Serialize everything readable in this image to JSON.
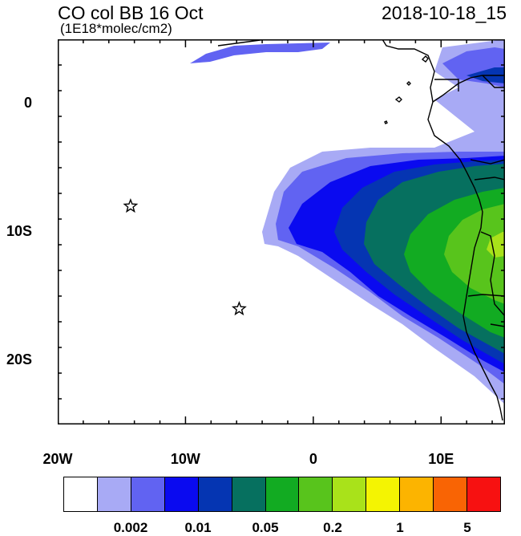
{
  "header": {
    "title": "CO col BB 16 Oct",
    "subtitle": "(1E18*molec/cm2)",
    "timestamp": "2018-10-18_15"
  },
  "map": {
    "lon_range": [
      -20,
      15
    ],
    "lat_range": [
      -25,
      5
    ],
    "x_tick_labels": [
      {
        "lon": -20,
        "label": "20W"
      },
      {
        "lon": -10,
        "label": "10W"
      },
      {
        "lon": 0,
        "label": "0"
      },
      {
        "lon": 10,
        "label": "10E"
      }
    ],
    "y_tick_labels": [
      {
        "lat": 0,
        "label": "0"
      },
      {
        "lat": -10,
        "label": "10S"
      },
      {
        "lat": -20,
        "label": "20S"
      }
    ],
    "markers": [
      {
        "name": "star",
        "lon": -14.3,
        "lat": -8.0
      },
      {
        "name": "star",
        "lon": -5.8,
        "lat": -16.0
      }
    ]
  },
  "colorbar": {
    "colors": [
      "#ffffff",
      "#a8aaf5",
      "#6163f2",
      "#0a0af0",
      "#0535b2",
      "#06705f",
      "#12ab22",
      "#58c41c",
      "#a9e21a",
      "#f4f402",
      "#fcb400",
      "#f96404",
      "#f71111"
    ],
    "labels": [
      {
        "index": 2,
        "text": "0.002"
      },
      {
        "index": 4,
        "text": "0.01"
      },
      {
        "index": 6,
        "text": "0.05"
      },
      {
        "index": 8,
        "text": "0.2"
      },
      {
        "index": 10,
        "text": "1"
      },
      {
        "index": 12,
        "text": "5"
      }
    ]
  }
}
